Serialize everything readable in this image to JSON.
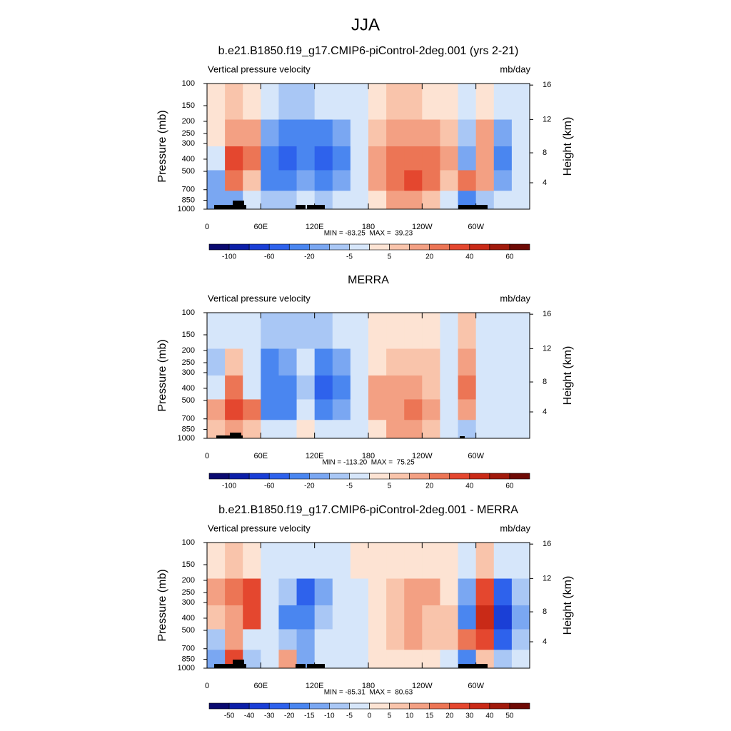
{
  "title": "JJA",
  "chart_data": [
    {
      "type": "contour",
      "title": "b.e21.B1850.f19_g17.CMIP6-piControl-2deg.001 (yrs 2-21)",
      "left_label": "Vertical pressure velocity",
      "right_label": "mb/day",
      "stats": "MIN = -83.25  MAX =  39.23",
      "ylabel": "Pressure (mb)",
      "y2label": "Height (km)",
      "xlim": [
        0,
        360
      ],
      "xticks": [
        0,
        {
          "value": 60,
          "label": "60E"
        },
        {
          "value": 120,
          "label": "120E"
        },
        180,
        {
          "value": 240,
          "label": "120W"
        },
        {
          "value": 300,
          "label": "60W"
        }
      ],
      "ylim": [
        1000,
        100
      ],
      "ylog": true,
      "yticks": [
        100,
        150,
        200,
        250,
        300,
        400,
        500,
        700,
        850,
        1000
      ],
      "y2ticks": [
        4,
        8,
        12,
        16
      ],
      "x": [
        10,
        30,
        50,
        70,
        90,
        110,
        130,
        150,
        170,
        190,
        210,
        230,
        250,
        270,
        290,
        310,
        330,
        350
      ],
      "y": [
        150,
        250,
        400,
        600,
        850
      ],
      "values": [
        [
          2,
          5,
          2,
          -5,
          -10,
          -10,
          -5,
          -5,
          -3,
          2,
          5,
          5,
          3,
          2,
          -3,
          3,
          -3,
          -2
        ],
        [
          3,
          15,
          10,
          -20,
          -30,
          -30,
          -30,
          -20,
          -5,
          5,
          15,
          15,
          10,
          5,
          -10,
          10,
          -20,
          -5
        ],
        [
          -3,
          30,
          20,
          -30,
          -50,
          -40,
          -50,
          -30,
          -5,
          10,
          20,
          25,
          20,
          10,
          -20,
          15,
          -30,
          -5
        ],
        [
          -20,
          20,
          5,
          -40,
          -40,
          -20,
          -40,
          -20,
          -3,
          10,
          25,
          30,
          20,
          5,
          25,
          10,
          -20,
          -3
        ],
        [
          -20,
          -20,
          -5,
          -10,
          -10,
          -5,
          -10,
          -5,
          -3,
          3,
          10,
          10,
          5,
          -3,
          -30,
          -10,
          -5,
          -2
        ]
      ],
      "colorbar": {
        "levels": [
          -100,
          -80,
          -60,
          -40,
          -20,
          -10,
          -5,
          0,
          5,
          10,
          20,
          30,
          40,
          50,
          60
        ],
        "ticks": [
          -100,
          -60,
          -20,
          -5,
          5,
          20,
          40,
          60
        ],
        "colors": [
          "#0a0a70",
          "#0c1fa8",
          "#1a3fd6",
          "#2e62ec",
          "#4a86f0",
          "#7aa7f2",
          "#a9c7f5",
          "#d6e6fa",
          "#fde3d3",
          "#f9c4ab",
          "#f3a083",
          "#ec7555",
          "#e4472f",
          "#c92a17",
          "#a11a0c",
          "#6e0a05"
        ]
      }
    },
    {
      "type": "contour",
      "title": "MERRA",
      "left_label": "Vertical pressure velocity",
      "right_label": "mb/day",
      "stats": "MIN = -113.20  MAX =  75.25",
      "ylabel": "Pressure (mb)",
      "y2label": "Height (km)",
      "xlim": [
        0,
        360
      ],
      "xticks": [
        0,
        {
          "value": 60,
          "label": "60E"
        },
        {
          "value": 120,
          "label": "120E"
        },
        180,
        {
          "value": 240,
          "label": "120W"
        },
        {
          "value": 300,
          "label": "60W"
        }
      ],
      "ylim": [
        1000,
        100
      ],
      "ylog": true,
      "yticks": [
        100,
        150,
        200,
        250,
        300,
        400,
        500,
        700,
        850,
        1000
      ],
      "y2ticks": [
        4,
        8,
        12,
        16
      ],
      "x": [
        10,
        30,
        50,
        70,
        90,
        110,
        130,
        150,
        170,
        190,
        210,
        230,
        250,
        270,
        290,
        310,
        330,
        350
      ],
      "y": [
        150,
        250,
        400,
        600,
        850
      ],
      "values": [
        [
          -3,
          -3,
          -5,
          -10,
          -10,
          -10,
          -10,
          -5,
          -5,
          2,
          3,
          3,
          3,
          -3,
          5,
          -3,
          -5,
          -3
        ],
        [
          -10,
          5,
          -5,
          -30,
          -20,
          -5,
          -30,
          -20,
          -5,
          3,
          5,
          5,
          5,
          -3,
          10,
          -5,
          -5,
          -3
        ],
        [
          -5,
          20,
          -5,
          -40,
          -40,
          -10,
          -50,
          -30,
          -5,
          10,
          10,
          10,
          5,
          -5,
          20,
          -5,
          -5,
          -5
        ],
        [
          10,
          30,
          20,
          -30,
          -30,
          -5,
          -30,
          -20,
          -3,
          10,
          15,
          20,
          10,
          -5,
          10,
          -3,
          -3,
          -3
        ],
        [
          5,
          10,
          5,
          -5,
          -5,
          3,
          -5,
          -5,
          -3,
          3,
          10,
          15,
          5,
          -3,
          -10,
          -3,
          -3,
          -3
        ]
      ],
      "colorbar": {
        "levels": [
          -100,
          -80,
          -60,
          -40,
          -20,
          -10,
          -5,
          0,
          5,
          10,
          20,
          30,
          40,
          50,
          60
        ],
        "ticks": [
          -100,
          -60,
          -20,
          -5,
          5,
          20,
          40,
          60
        ],
        "colors": [
          "#0a0a70",
          "#0c1fa8",
          "#1a3fd6",
          "#2e62ec",
          "#4a86f0",
          "#7aa7f2",
          "#a9c7f5",
          "#d6e6fa",
          "#fde3d3",
          "#f9c4ab",
          "#f3a083",
          "#ec7555",
          "#e4472f",
          "#c92a17",
          "#a11a0c",
          "#6e0a05"
        ]
      }
    },
    {
      "type": "contour",
      "title": "b.e21.B1850.f19_g17.CMIP6-piControl-2deg.001 - MERRA",
      "left_label": "Vertical pressure velocity",
      "right_label": "mb/day",
      "stats": "MIN = -85.31  MAX =  80.63",
      "ylabel": "Pressure (mb)",
      "y2label": "Height (km)",
      "xlim": [
        0,
        360
      ],
      "xticks": [
        0,
        {
          "value": 60,
          "label": "60E"
        },
        {
          "value": 120,
          "label": "120E"
        },
        180,
        {
          "value": 240,
          "label": "120W"
        },
        {
          "value": 300,
          "label": "60W"
        }
      ],
      "ylim": [
        1000,
        100
      ],
      "ylog": true,
      "yticks": [
        100,
        150,
        200,
        250,
        300,
        400,
        500,
        700,
        850,
        1000
      ],
      "y2ticks": [
        4,
        8,
        12,
        16
      ],
      "x": [
        10,
        30,
        50,
        70,
        90,
        110,
        130,
        150,
        170,
        190,
        210,
        230,
        250,
        270,
        290,
        310,
        330,
        350
      ],
      "y": [
        150,
        250,
        400,
        600,
        850
      ],
      "values": [
        [
          3,
          5,
          3,
          -3,
          -5,
          -5,
          -3,
          -2,
          0,
          2,
          3,
          3,
          3,
          3,
          -5,
          5,
          -5,
          -3
        ],
        [
          10,
          15,
          20,
          -5,
          -10,
          -25,
          -15,
          -5,
          -3,
          2,
          5,
          10,
          10,
          3,
          -15,
          20,
          -25,
          -10
        ],
        [
          5,
          10,
          25,
          -5,
          -20,
          -20,
          -10,
          -5,
          -3,
          3,
          5,
          10,
          5,
          5,
          -20,
          30,
          -40,
          -15
        ],
        [
          -10,
          10,
          -5,
          -5,
          -10,
          -15,
          -5,
          -5,
          -2,
          3,
          5,
          10,
          5,
          5,
          15,
          20,
          -30,
          -10
        ],
        [
          -15,
          25,
          -10,
          -3,
          10,
          -15,
          -5,
          -3,
          -2,
          2,
          3,
          3,
          3,
          -3,
          -20,
          5,
          -10,
          -5
        ]
      ],
      "colorbar": {
        "levels": [
          -50,
          -40,
          -30,
          -20,
          -15,
          -10,
          -5,
          0,
          5,
          10,
          15,
          20,
          30,
          40,
          50
        ],
        "ticks": [
          -50,
          -40,
          -30,
          -20,
          -15,
          -10,
          -5,
          0,
          5,
          10,
          15,
          20,
          30,
          40,
          50
        ],
        "colors": [
          "#0a0a70",
          "#0c1fa8",
          "#1a3fd6",
          "#2e62ec",
          "#4a86f0",
          "#7aa7f2",
          "#a9c7f5",
          "#d6e6fa",
          "#fde3d3",
          "#f9c4ab",
          "#f3a083",
          "#ec7555",
          "#e4472f",
          "#c92a17",
          "#a11a0c",
          "#6e0a05"
        ]
      }
    }
  ]
}
